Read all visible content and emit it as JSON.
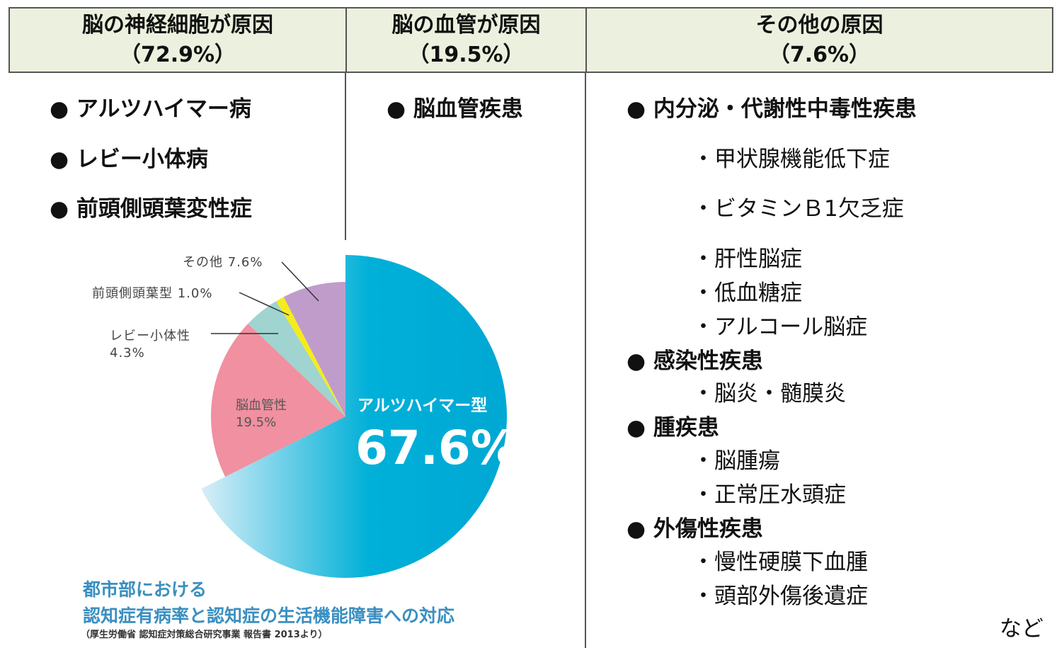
{
  "headers": [
    {
      "title": "脳の神経細胞が原因",
      "pct": "（72.9%）"
    },
    {
      "title": "脳の血管が原因",
      "pct": "（19.5%）"
    },
    {
      "title": "その他の原因",
      "pct": "（7.6%）"
    }
  ],
  "col1": [
    "● アルツハイマー病",
    "● レビー小体病",
    "● 前頭側頭葉変性症"
  ],
  "col2": [
    "● 脳血管疾患"
  ],
  "col3": [
    {
      "text": "● 内分泌・代謝性中毒性疾患",
      "bold": true
    },
    {
      "text": "・甲状腺機能低下症",
      "bold": false
    },
    {
      "text": "・ビタミンＢ1欠乏症",
      "bold": false
    },
    {
      "text": "・肝性脳症",
      "bold": false
    },
    {
      "text": "・低血糖症",
      "bold": false
    },
    {
      "text": "・アルコール脳症",
      "bold": false
    },
    {
      "text": "● 感染性疾患",
      "bold": true
    },
    {
      "text": "・脳炎・髄膜炎",
      "bold": false
    },
    {
      "text": "● 腫疾患",
      "bold": true
    },
    {
      "text": "・脳腫瘍",
      "bold": false
    },
    {
      "text": "・正常圧水頭症",
      "bold": false
    },
    {
      "text": "● 外傷性疾患",
      "bold": true
    },
    {
      "text": "・慢性硬膜下血腫",
      "bold": false
    },
    {
      "text": "・頭部外傷後遺症",
      "bold": false
    }
  ],
  "etc": "など",
  "chart_data": {
    "type": "pie",
    "start": "12 o'clock, clockwise",
    "slices": [
      {
        "label": "アルツハイマー型",
        "value": 67.6,
        "display": "67.6%",
        "color": "#00b0d8",
        "exploded": true
      },
      {
        "label": "脳血管性",
        "value": 19.5,
        "display": "19.5%",
        "color": "#f090a0"
      },
      {
        "label": "レビー小体性",
        "value": 4.3,
        "display": "4.3%",
        "color": "#9fd4d0"
      },
      {
        "label": "前頭側頭葉型",
        "value": 1.0,
        "display": "1.0%",
        "color": "#f5ec1a"
      },
      {
        "label": "その他",
        "value": 7.6,
        "display": "7.6%",
        "color": "#c09ccb"
      }
    ],
    "title_line1": "都市部における",
    "title_line2": "認知症有病率と認知症の生活機能障害への対応",
    "source": "（厚生労働省 認知症対策総合研究事業 報告書 2013より）"
  }
}
